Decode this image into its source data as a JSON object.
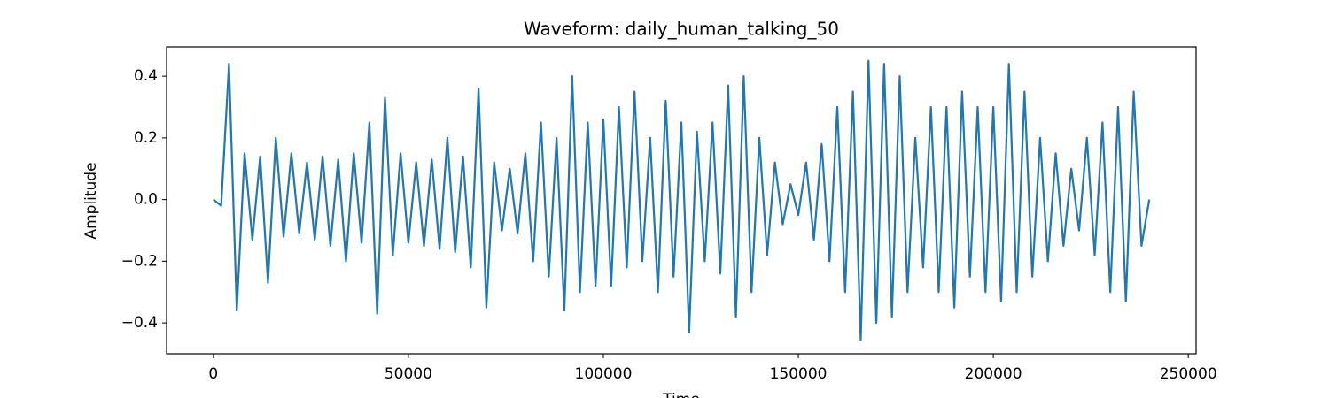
{
  "chart_data": {
    "type": "line",
    "title": "Waveform: daily_human_talking_50",
    "xlabel": "Time",
    "ylabel": "Amplitude",
    "x": [
      0,
      2000,
      4000,
      6000,
      8000,
      10000,
      12000,
      14000,
      16000,
      18000,
      20000,
      22000,
      24000,
      26000,
      28000,
      30000,
      32000,
      34000,
      36000,
      38000,
      40000,
      42000,
      44000,
      46000,
      48000,
      50000,
      52000,
      54000,
      56000,
      58000,
      60000,
      62000,
      64000,
      66000,
      68000,
      70000,
      72000,
      74000,
      76000,
      78000,
      80000,
      82000,
      84000,
      86000,
      88000,
      90000,
      92000,
      94000,
      96000,
      98000,
      100000,
      102000,
      104000,
      106000,
      108000,
      110000,
      112000,
      114000,
      116000,
      118000,
      120000,
      122000,
      124000,
      126000,
      128000,
      130000,
      132000,
      134000,
      136000,
      138000,
      140000,
      142000,
      144000,
      146000,
      148000,
      150000,
      152000,
      154000,
      156000,
      158000,
      160000,
      162000,
      164000,
      166000,
      168000,
      170000,
      172000,
      174000,
      176000,
      178000,
      180000,
      182000,
      184000,
      186000,
      188000,
      190000,
      192000,
      194000,
      196000,
      198000,
      200000,
      202000,
      204000,
      206000,
      208000,
      210000,
      212000,
      214000,
      216000,
      218000,
      220000,
      222000,
      224000,
      226000,
      228000,
      230000,
      232000,
      234000,
      236000,
      238000,
      240000
    ],
    "values": [
      0.0,
      -0.02,
      0.44,
      -0.36,
      0.15,
      -0.13,
      0.14,
      -0.27,
      0.2,
      -0.12,
      0.15,
      -0.11,
      0.12,
      -0.13,
      0.14,
      -0.15,
      0.13,
      -0.2,
      0.15,
      -0.14,
      0.25,
      -0.37,
      0.33,
      -0.18,
      0.15,
      -0.14,
      0.12,
      -0.15,
      0.13,
      -0.16,
      0.2,
      -0.17,
      0.14,
      -0.22,
      0.36,
      -0.35,
      0.12,
      -0.1,
      0.1,
      -0.11,
      0.15,
      -0.2,
      0.25,
      -0.25,
      0.2,
      -0.36,
      0.4,
      -0.3,
      0.25,
      -0.28,
      0.26,
      -0.28,
      0.3,
      -0.22,
      0.35,
      -0.2,
      0.2,
      -0.3,
      0.32,
      -0.25,
      0.25,
      -0.43,
      0.22,
      -0.2,
      0.25,
      -0.24,
      0.37,
      -0.38,
      0.4,
      -0.3,
      0.2,
      -0.18,
      0.12,
      -0.08,
      0.05,
      -0.05,
      0.12,
      -0.13,
      0.18,
      -0.2,
      0.3,
      -0.3,
      0.35,
      -0.455,
      0.45,
      -0.4,
      0.44,
      -0.38,
      0.4,
      -0.3,
      0.2,
      -0.22,
      0.3,
      -0.3,
      0.3,
      -0.35,
      0.35,
      -0.25,
      0.3,
      -0.3,
      0.3,
      -0.33,
      0.44,
      -0.3,
      0.35,
      -0.25,
      0.2,
      -0.2,
      0.15,
      -0.15,
      0.1,
      -0.1,
      0.2,
      -0.18,
      0.25,
      -0.3,
      0.3,
      -0.33,
      0.35,
      -0.15,
      0.0
    ],
    "color": "#1f77b4",
    "xlim": [
      -12000,
      252000
    ],
    "ylim": [
      -0.5,
      0.495
    ],
    "xticks": [
      0,
      50000,
      100000,
      150000,
      200000,
      250000
    ],
    "yticks": [
      {
        "value": -0.4,
        "label": "−0.4"
      },
      {
        "value": -0.2,
        "label": "−0.2"
      },
      {
        "value": 0,
        "label": "0.0"
      },
      0.2,
      0.4
    ]
  }
}
